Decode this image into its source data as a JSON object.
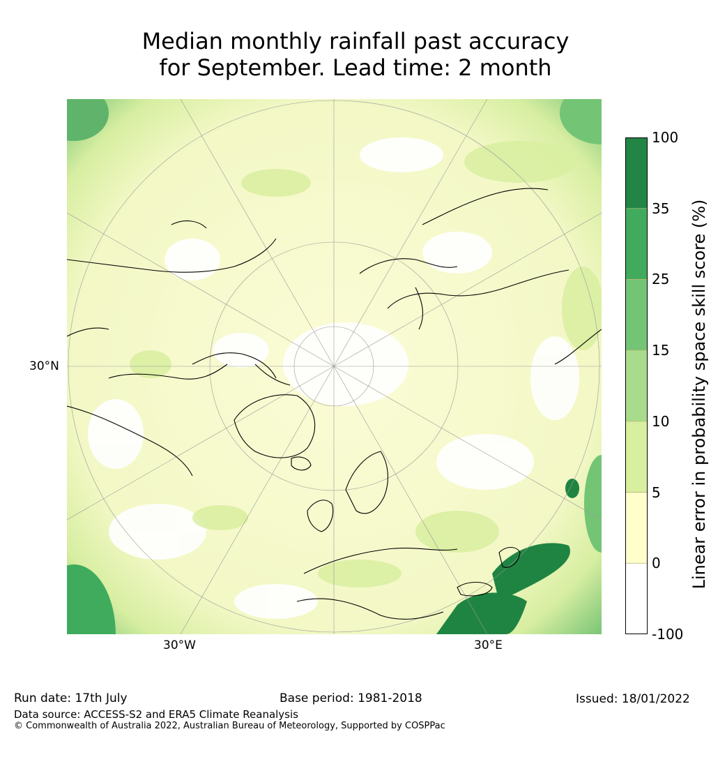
{
  "title": {
    "line1": "Median monthly rainfall past accuracy",
    "line2": "for September. Lead time: 2 month"
  },
  "map": {
    "projection": "north-polar-stereographic",
    "lat_label": "30°N",
    "lon_labels": [
      "30°W",
      "30°E"
    ],
    "colors": {
      "ocean_bg": "#f7f9cf",
      "land_light": "#fbfcd6",
      "white_patch": "#ffffff",
      "green_light": "#d8efa0",
      "green_mid": "#a8dc8c",
      "green_dark": "#1f8442",
      "coastline": "#000000",
      "gridline": "#999999"
    }
  },
  "colorbar": {
    "title": "Linear error in probability space skill score (%)",
    "ticks": [
      "100",
      "35",
      "25",
      "15",
      "10",
      "5",
      "0",
      "-100"
    ],
    "bins": [
      {
        "from": "35",
        "to": "100",
        "color": "#228546"
      },
      {
        "from": "25",
        "to": "35",
        "color": "#40ab5d"
      },
      {
        "from": "15",
        "to": "25",
        "color": "#74c476"
      },
      {
        "from": "10",
        "to": "15",
        "color": "#a8dc8c"
      },
      {
        "from": "5",
        "to": "10",
        "color": "#d8efa0"
      },
      {
        "from": "0",
        "to": "5",
        "color": "#ffffcc"
      },
      {
        "from": "-100",
        "to": "0",
        "color": "#ffffff"
      }
    ]
  },
  "footer": {
    "run_date": "Run date: 17th July",
    "base_period": "Base period: 1981-2018",
    "issued": "Issued: 18/01/2022",
    "data_source": "Data source: ACCESS-S2 and ERA5 Climate Reanalysis",
    "copyright": "© Commonwealth of Australia 2022, Australian Bureau of Meteorology, Supported by COSPPac"
  }
}
